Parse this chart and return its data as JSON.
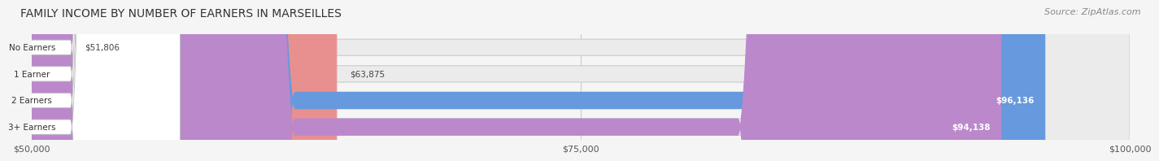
{
  "title": "FAMILY INCOME BY NUMBER OF EARNERS IN MARSEILLES",
  "source": "Source: ZipAtlas.com",
  "categories": [
    "No Earners",
    "1 Earner",
    "2 Earners",
    "3+ Earners"
  ],
  "values": [
    51806,
    63875,
    96136,
    94138
  ],
  "bar_colors": [
    "#f5c98a",
    "#e89090",
    "#6699dd",
    "#bb88cc"
  ],
  "bar_bg_color": "#e8e8e8",
  "label_colors": [
    "#555555",
    "#555555",
    "#ffffff",
    "#ffffff"
  ],
  "x_min": 50000,
  "x_max": 100000,
  "x_ticks": [
    50000,
    75000,
    100000
  ],
  "x_tick_labels": [
    "$50,000",
    "$75,000",
    "$100,000"
  ],
  "value_labels": [
    "$51,806",
    "$63,875",
    "$96,136",
    "$94,138"
  ],
  "fig_bg_color": "#f5f5f5",
  "bar_bg_outer": "#d8d8d8",
  "title_fontsize": 10,
  "source_fontsize": 8
}
